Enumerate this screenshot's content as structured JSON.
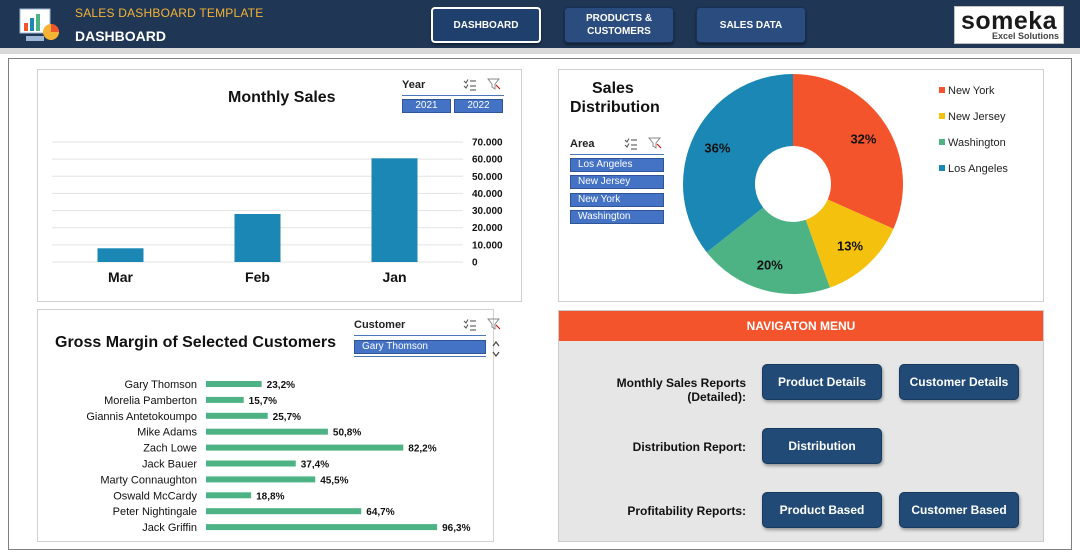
{
  "header": {
    "app_title": "SALES DASHBOARD TEMPLATE",
    "page_title": "DASHBOARD",
    "nav": [
      {
        "label": "DASHBOARD",
        "active": true
      },
      {
        "label": "PRODUCTS & CUSTOMERS",
        "active": false
      },
      {
        "label": "SALES DATA",
        "active": false
      }
    ],
    "brand": {
      "name": "someka",
      "sub": "Excel Solutions"
    }
  },
  "monthly_sales": {
    "title": "Monthly Sales",
    "slicer": {
      "label": "Year",
      "items": [
        "2021",
        "2022"
      ]
    }
  },
  "distribution": {
    "title_line1": "Sales",
    "title_line2": "Distribution",
    "slicer": {
      "label": "Area",
      "items": [
        "Los Angeles",
        "New Jersey",
        "New York",
        "Washington"
      ]
    }
  },
  "gross_margin": {
    "title": "Gross Margin of Selected Customers",
    "slicer": {
      "label": "Customer",
      "selected": "Gary Thomson"
    }
  },
  "navigation": {
    "title": "NAVIGATON MENU",
    "rows": [
      {
        "label": "Monthly Sales Reports (Detailed):",
        "buttons": [
          "Product Details",
          "Customer Details"
        ]
      },
      {
        "label": "Distribution Report:",
        "buttons": [
          "Distribution"
        ]
      },
      {
        "label": "Profitability Reports:",
        "buttons": [
          "Product Based",
          "Customer Based"
        ]
      }
    ]
  },
  "colors": {
    "header_bg": "#1f3654",
    "accent_orange": "#f4542c",
    "bar_blue": "#1b87b4",
    "bar_green": "#4db385",
    "button_blue": "#224a76"
  },
  "chart_data": [
    {
      "type": "bar",
      "title": "Monthly Sales",
      "categories": [
        "Mar",
        "Feb",
        "Jan"
      ],
      "values": [
        8000,
        28000,
        60500
      ],
      "ylim": [
        0,
        70000
      ],
      "y_ticks": [
        "0",
        "10.000",
        "20.000",
        "30.000",
        "40.000",
        "50.000",
        "60.000",
        "70.000"
      ],
      "y_axis_position": "right",
      "grid": true
    },
    {
      "type": "pie",
      "variant": "donut",
      "title": "Sales Distribution",
      "labels": [
        "New York",
        "Washington",
        "Los Angeles",
        "New Jersey"
      ],
      "slices": [
        {
          "label": "New York",
          "value": 32,
          "display": "32%",
          "color": "#f4542c"
        },
        {
          "label": "New Jersey",
          "value": 13,
          "display": "13%",
          "color": "#f5c10f"
        },
        {
          "label": "Washington",
          "value": 20,
          "display": "20%",
          "color": "#4db385"
        },
        {
          "label": "Los Angeles",
          "value": 36,
          "display": "36%",
          "color": "#1b87b4"
        }
      ],
      "legend": {
        "position": "right",
        "items": [
          "New York",
          "New Jersey",
          "Washington",
          "Los Angeles"
        ]
      }
    },
    {
      "type": "bar",
      "orientation": "horizontal",
      "title": "Gross Margin of Selected Customers",
      "categories": [
        "Gary Thomson",
        "Morelia Pamberton",
        "Giannis Antetokoumpo",
        "Mike Adams",
        "Zach Lowe",
        "Jack Bauer",
        "Marty Connaughton",
        "Oswald McCardy",
        "Peter Nightingale",
        "Jack Griffin"
      ],
      "values": [
        23.2,
        15.7,
        25.7,
        50.8,
        82.2,
        37.4,
        45.5,
        18.8,
        64.7,
        96.3
      ],
      "labels": [
        "23,2%",
        "15,7%",
        "25,7%",
        "50,8%",
        "82,2%",
        "37,4%",
        "45,5%",
        "18,8%",
        "64,7%",
        "96,3%"
      ],
      "xlim": [
        0,
        100
      ]
    }
  ]
}
